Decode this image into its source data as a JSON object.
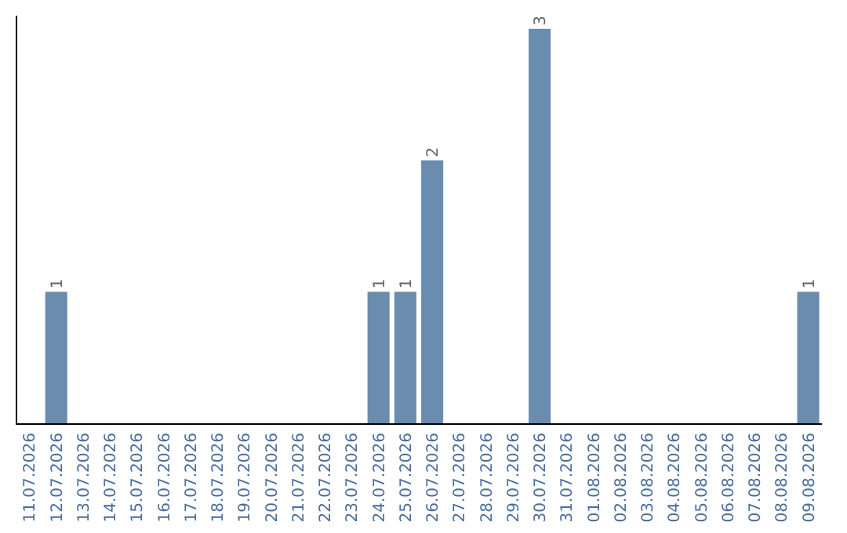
{
  "chart_data": {
    "type": "bar",
    "categories": [
      "11.07.2026",
      "12.07.2026",
      "13.07.2026",
      "14.07.2026",
      "15.07.2026",
      "16.07.2026",
      "17.07.2026",
      "18.07.2026",
      "19.07.2026",
      "20.07.2026",
      "21.07.2026",
      "22.07.2026",
      "23.07.2026",
      "24.07.2026",
      "25.07.2026",
      "26.07.2026",
      "27.07.2026",
      "28.07.2026",
      "29.07.2026",
      "30.07.2026",
      "31.07.2026",
      "01.08.2026",
      "02.08.2026",
      "03.08.2026",
      "04.08.2026",
      "05.08.2026",
      "06.08.2026",
      "07.08.2026",
      "08.08.2026",
      "09.08.2026"
    ],
    "values": [
      0,
      1,
      0,
      0,
      0,
      0,
      0,
      0,
      0,
      0,
      0,
      0,
      0,
      1,
      1,
      2,
      0,
      0,
      0,
      3,
      0,
      0,
      0,
      0,
      0,
      0,
      0,
      0,
      0,
      1
    ],
    "value_labels": [
      null,
      "1",
      null,
      null,
      null,
      null,
      null,
      null,
      null,
      null,
      null,
      null,
      null,
      "1",
      "1",
      "2",
      null,
      null,
      null,
      "3",
      null,
      null,
      null,
      null,
      null,
      null,
      null,
      null,
      null,
      "1"
    ],
    "color": "#6a8caf",
    "ylim": [
      0,
      3.1
    ],
    "tick_labels": "x"
  }
}
